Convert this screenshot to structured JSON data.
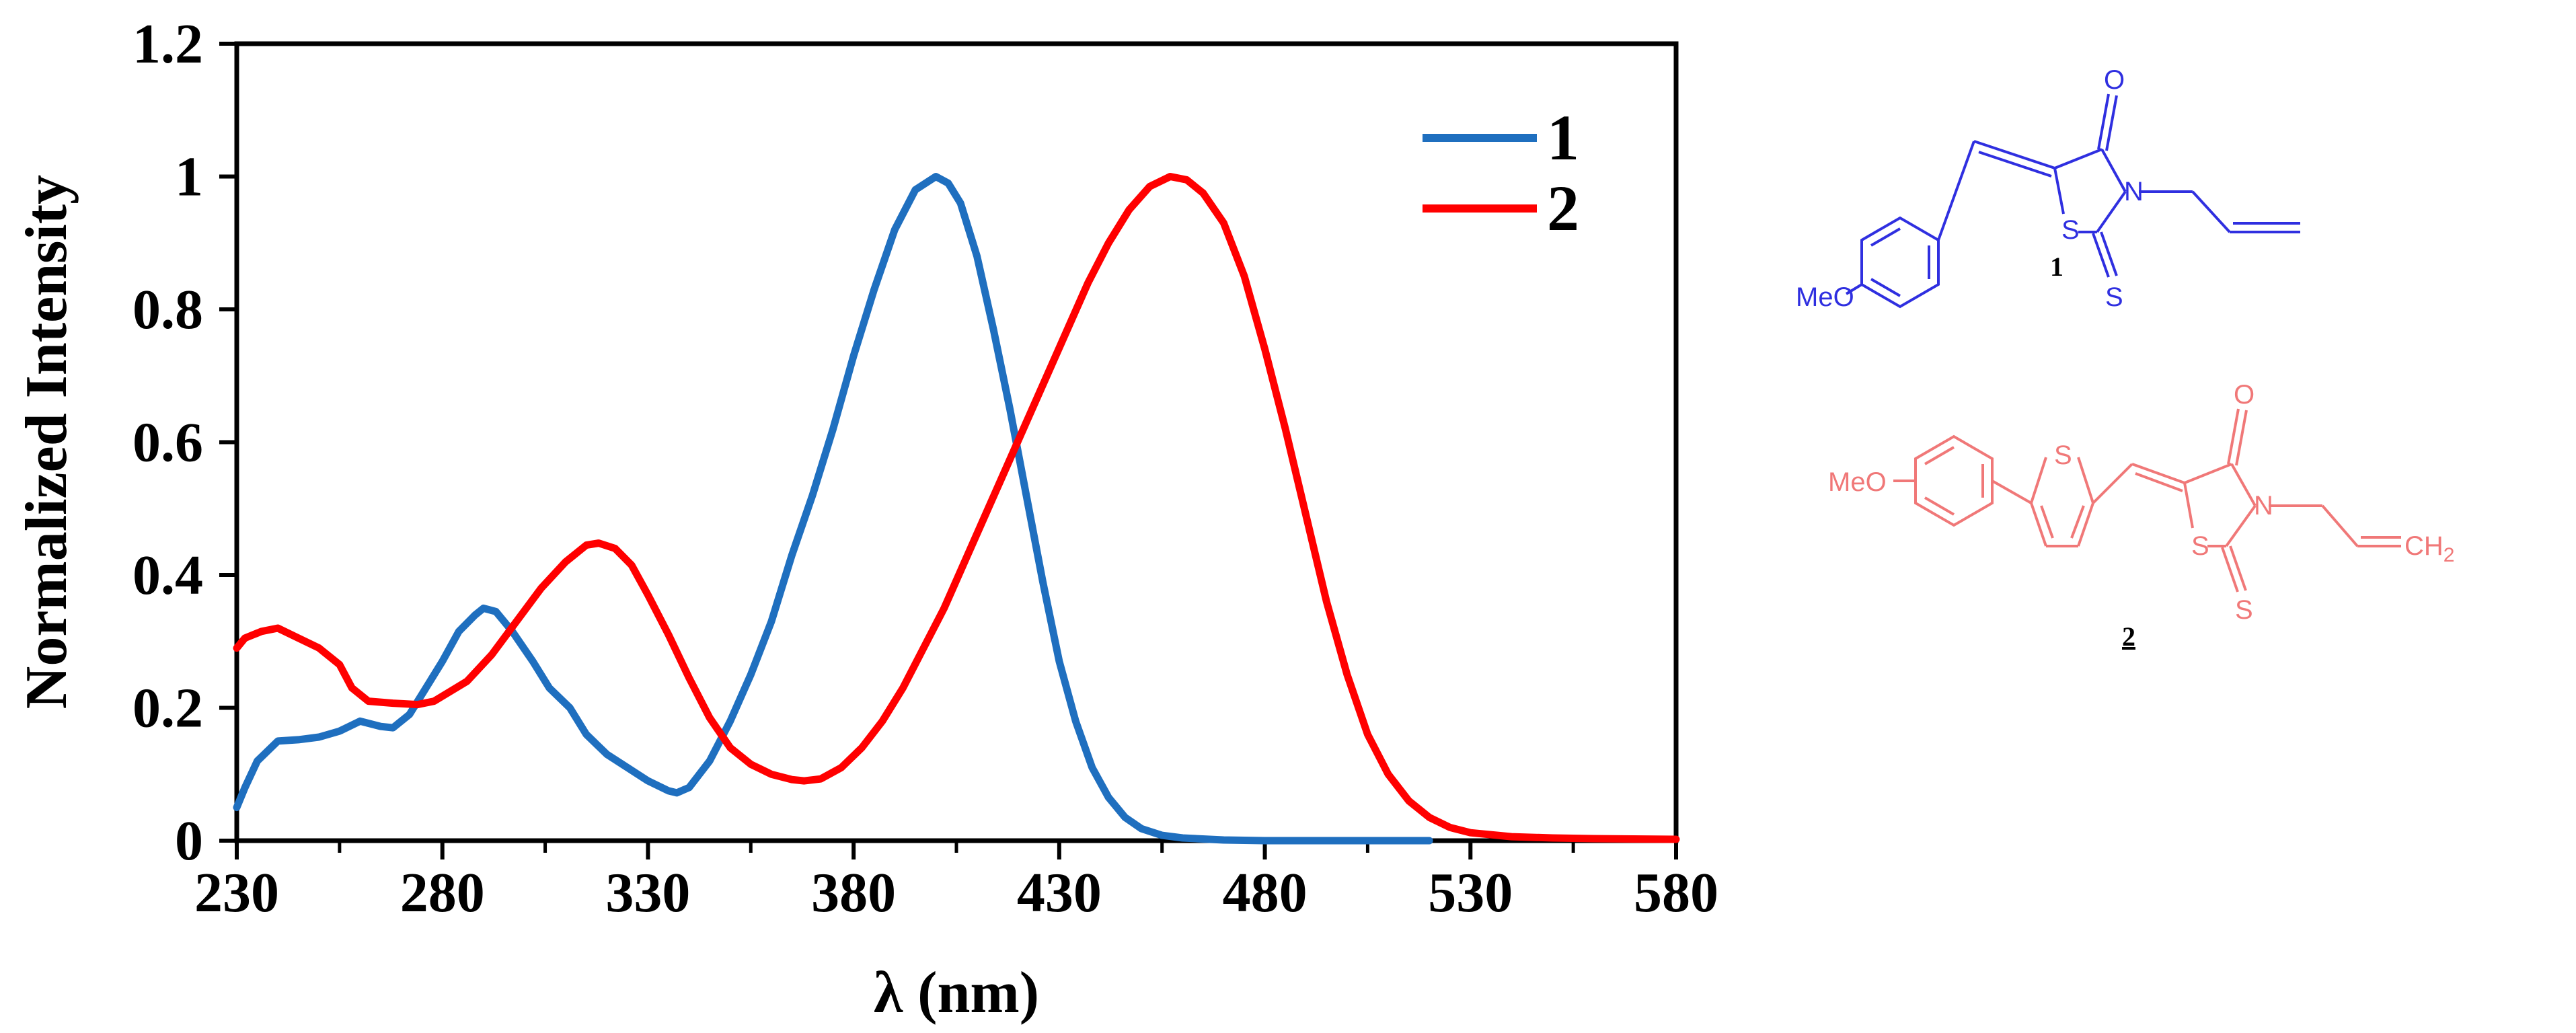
{
  "chart_data": {
    "type": "line",
    "title": "",
    "xlabel": "λ (nm)",
    "ylabel": "Normalized Intensity",
    "xlim": [
      230,
      580
    ],
    "ylim": [
      0,
      1.2
    ],
    "x_ticks": [
      230,
      280,
      330,
      380,
      430,
      480,
      530,
      580
    ],
    "y_ticks": [
      0,
      0.2,
      0.4,
      0.6,
      0.8,
      1,
      1.2
    ],
    "y_tick_labels": [
      "0",
      "0.2",
      "0.4",
      "0.6",
      "0.8",
      "1",
      "1.2"
    ],
    "legend_position": "top-right",
    "series": [
      {
        "name": "1",
        "color": "#1f6fbf",
        "points": [
          [
            230,
            0.05
          ],
          [
            232,
            0.08
          ],
          [
            235,
            0.12
          ],
          [
            240,
            0.15
          ],
          [
            245,
            0.152
          ],
          [
            250,
            0.156
          ],
          [
            255,
            0.165
          ],
          [
            260,
            0.18
          ],
          [
            265,
            0.172
          ],
          [
            268,
            0.17
          ],
          [
            272,
            0.19
          ],
          [
            276,
            0.23
          ],
          [
            280,
            0.27
          ],
          [
            284,
            0.315
          ],
          [
            288,
            0.34
          ],
          [
            290,
            0.35
          ],
          [
            293,
            0.345
          ],
          [
            297,
            0.315
          ],
          [
            302,
            0.27
          ],
          [
            306,
            0.23
          ],
          [
            311,
            0.2
          ],
          [
            315,
            0.16
          ],
          [
            320,
            0.13
          ],
          [
            325,
            0.11
          ],
          [
            330,
            0.09
          ],
          [
            335,
            0.075
          ],
          [
            337,
            0.072
          ],
          [
            340,
            0.08
          ],
          [
            345,
            0.12
          ],
          [
            350,
            0.18
          ],
          [
            355,
            0.25
          ],
          [
            360,
            0.33
          ],
          [
            365,
            0.43
          ],
          [
            370,
            0.52
          ],
          [
            375,
            0.62
          ],
          [
            380,
            0.73
          ],
          [
            385,
            0.83
          ],
          [
            390,
            0.92
          ],
          [
            395,
            0.98
          ],
          [
            400,
            1.0
          ],
          [
            403,
            0.99
          ],
          [
            406,
            0.96
          ],
          [
            410,
            0.88
          ],
          [
            414,
            0.77
          ],
          [
            418,
            0.65
          ],
          [
            422,
            0.52
          ],
          [
            426,
            0.39
          ],
          [
            430,
            0.27
          ],
          [
            434,
            0.18
          ],
          [
            438,
            0.11
          ],
          [
            442,
            0.065
          ],
          [
            446,
            0.035
          ],
          [
            450,
            0.018
          ],
          [
            455,
            0.008
          ],
          [
            460,
            0.004
          ],
          [
            470,
            0.001
          ],
          [
            480,
            0.0
          ],
          [
            520,
            0.0
          ]
        ]
      },
      {
        "name": "2",
        "color": "#ff0000",
        "points": [
          [
            230,
            0.29
          ],
          [
            232,
            0.305
          ],
          [
            236,
            0.315
          ],
          [
            240,
            0.32
          ],
          [
            245,
            0.305
          ],
          [
            250,
            0.29
          ],
          [
            255,
            0.265
          ],
          [
            258,
            0.23
          ],
          [
            262,
            0.21
          ],
          [
            268,
            0.207
          ],
          [
            274,
            0.205
          ],
          [
            278,
            0.21
          ],
          [
            282,
            0.225
          ],
          [
            286,
            0.24
          ],
          [
            292,
            0.28
          ],
          [
            298,
            0.33
          ],
          [
            304,
            0.38
          ],
          [
            310,
            0.42
          ],
          [
            315,
            0.445
          ],
          [
            318,
            0.448
          ],
          [
            322,
            0.44
          ],
          [
            326,
            0.415
          ],
          [
            330,
            0.37
          ],
          [
            335,
            0.31
          ],
          [
            340,
            0.245
          ],
          [
            345,
            0.185
          ],
          [
            350,
            0.14
          ],
          [
            355,
            0.115
          ],
          [
            360,
            0.1
          ],
          [
            365,
            0.092
          ],
          [
            368,
            0.09
          ],
          [
            372,
            0.093
          ],
          [
            377,
            0.11
          ],
          [
            382,
            0.14
          ],
          [
            387,
            0.18
          ],
          [
            392,
            0.23
          ],
          [
            397,
            0.29
          ],
          [
            402,
            0.35
          ],
          [
            407,
            0.42
          ],
          [
            412,
            0.49
          ],
          [
            417,
            0.56
          ],
          [
            422,
            0.63
          ],
          [
            427,
            0.7
          ],
          [
            432,
            0.77
          ],
          [
            437,
            0.84
          ],
          [
            442,
            0.9
          ],
          [
            447,
            0.95
          ],
          [
            452,
            0.985
          ],
          [
            457,
            1.0
          ],
          [
            461,
            0.995
          ],
          [
            465,
            0.975
          ],
          [
            470,
            0.93
          ],
          [
            475,
            0.85
          ],
          [
            480,
            0.74
          ],
          [
            485,
            0.62
          ],
          [
            490,
            0.49
          ],
          [
            495,
            0.36
          ],
          [
            500,
            0.25
          ],
          [
            505,
            0.16
          ],
          [
            510,
            0.1
          ],
          [
            515,
            0.06
          ],
          [
            520,
            0.035
          ],
          [
            525,
            0.02
          ],
          [
            530,
            0.012
          ],
          [
            540,
            0.006
          ],
          [
            550,
            0.004
          ],
          [
            560,
            0.003
          ],
          [
            580,
            0.002
          ]
        ]
      }
    ]
  },
  "structures": {
    "compound_1": {
      "color": "#2f2fe0",
      "label": "1",
      "group_label": "MeO",
      "o_label": "O",
      "n_label": "N",
      "s_ring_label": "S",
      "s_thione_label": "S"
    },
    "compound_2": {
      "color": "#f07878",
      "label": "2",
      "group_label": "MeO",
      "o_label": "O",
      "n_label": "N",
      "s_thiophene_label": "S",
      "s_ring_label": "S",
      "s_thione_label": "S",
      "terminal_label": "CH",
      "terminal_subscript": "2"
    }
  }
}
